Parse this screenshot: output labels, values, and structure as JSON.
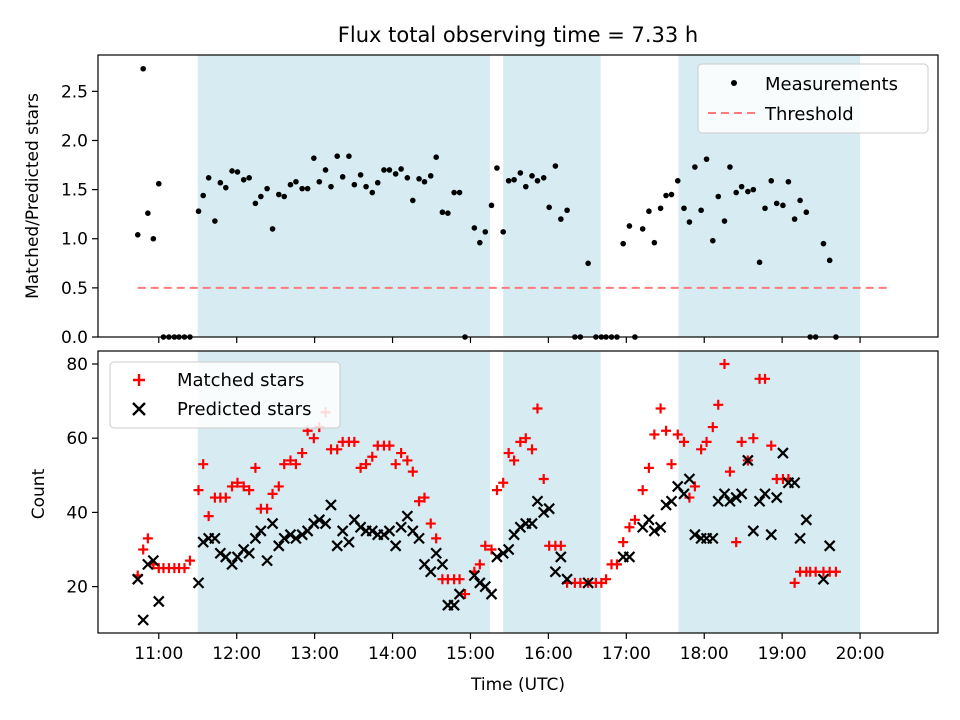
{
  "figure_title": "Flux total observing time = 7.33 h",
  "chart_data": [
    {
      "type": "scatter",
      "title": "Flux total observing time = 7.33 h",
      "xlabel": "",
      "ylabel": "Matched/Predicted stars",
      "xlim": [
        10.22,
        21.0
      ],
      "ylim": [
        0,
        2.87
      ],
      "yticks": [
        0.0,
        0.5,
        1.0,
        1.5,
        2.0,
        2.5
      ],
      "ytick_labels": [
        "0.0",
        "0.5",
        "1.0",
        "1.5",
        "2.0",
        "2.5"
      ],
      "xticks": [
        11,
        12,
        13,
        14,
        15,
        16,
        17,
        18,
        19,
        20
      ],
      "show_xtick_labels": false,
      "grid": false,
      "legend": {
        "placement": "top-right",
        "entries": [
          "Measurements",
          "Threshold"
        ]
      },
      "shaded_intervals": [
        [
          11.5,
          15.25
        ],
        [
          15.42,
          16.67
        ],
        [
          17.67,
          20.0
        ]
      ],
      "threshold": {
        "name": "Threshold",
        "y": 0.5,
        "x_range": [
          10.73,
          20.4
        ],
        "color": "#ff7b7b",
        "style": "dashed"
      },
      "series": [
        {
          "name": "Measurements",
          "marker": "dot",
          "color": "#000000",
          "points": [
            [
              10.73,
              1.04
            ],
            [
              10.8,
              2.73
            ],
            [
              10.86,
              1.26
            ],
            [
              10.93,
              1.0
            ],
            [
              11.0,
              1.56
            ],
            [
              11.06,
              0.0
            ],
            [
              11.13,
              0.0
            ],
            [
              11.2,
              0.0
            ],
            [
              11.26,
              0.0
            ],
            [
              11.33,
              0.0
            ],
            [
              11.4,
              0.0
            ],
            [
              11.51,
              1.28
            ],
            [
              11.57,
              1.44
            ],
            [
              11.64,
              1.62
            ],
            [
              11.72,
              1.18
            ],
            [
              11.79,
              1.57
            ],
            [
              11.86,
              1.52
            ],
            [
              11.94,
              1.69
            ],
            [
              12.01,
              1.68
            ],
            [
              12.09,
              1.6
            ],
            [
              12.16,
              1.62
            ],
            [
              12.24,
              1.36
            ],
            [
              12.31,
              1.43
            ],
            [
              12.39,
              1.51
            ],
            [
              12.46,
              1.1
            ],
            [
              12.54,
              1.45
            ],
            [
              12.61,
              1.43
            ],
            [
              12.69,
              1.55
            ],
            [
              12.76,
              1.58
            ],
            [
              12.84,
              1.51
            ],
            [
              12.91,
              1.51
            ],
            [
              12.99,
              1.82
            ],
            [
              13.06,
              1.58
            ],
            [
              13.14,
              1.7
            ],
            [
              13.21,
              1.53
            ],
            [
              13.29,
              1.84
            ],
            [
              13.36,
              1.63
            ],
            [
              13.44,
              1.84
            ],
            [
              13.51,
              1.55
            ],
            [
              13.59,
              1.65
            ],
            [
              13.66,
              1.53
            ],
            [
              13.74,
              1.47
            ],
            [
              13.81,
              1.57
            ],
            [
              13.89,
              1.7
            ],
            [
              13.96,
              1.7
            ],
            [
              14.04,
              1.66
            ],
            [
              14.11,
              1.71
            ],
            [
              14.19,
              1.62
            ],
            [
              14.26,
              1.39
            ],
            [
              14.34,
              1.61
            ],
            [
              14.41,
              1.58
            ],
            [
              14.49,
              1.64
            ],
            [
              14.56,
              1.83
            ],
            [
              14.64,
              1.27
            ],
            [
              14.71,
              1.26
            ],
            [
              14.79,
              1.47
            ],
            [
              14.86,
              1.47
            ],
            [
              14.93,
              0.0
            ],
            [
              15.05,
              1.11
            ],
            [
              15.12,
              0.96
            ],
            [
              15.19,
              1.07
            ],
            [
              15.27,
              1.34
            ],
            [
              15.34,
              1.72
            ],
            [
              15.42,
              1.07
            ],
            [
              15.49,
              1.59
            ],
            [
              15.56,
              1.6
            ],
            [
              15.64,
              1.67
            ],
            [
              15.71,
              1.53
            ],
            [
              15.79,
              1.64
            ],
            [
              15.86,
              1.59
            ],
            [
              15.94,
              1.62
            ],
            [
              16.01,
              1.32
            ],
            [
              16.09,
              1.74
            ],
            [
              16.16,
              1.2
            ],
            [
              16.24,
              1.29
            ],
            [
              16.34,
              0.0
            ],
            [
              16.41,
              0.0
            ],
            [
              16.51,
              0.75
            ],
            [
              16.61,
              0.0
            ],
            [
              16.68,
              0.0
            ],
            [
              16.74,
              0.0
            ],
            [
              16.81,
              0.0
            ],
            [
              16.88,
              0.0
            ],
            [
              16.96,
              0.95
            ],
            [
              17.04,
              1.13
            ],
            [
              17.11,
              0.0
            ],
            [
              17.21,
              1.1
            ],
            [
              17.29,
              1.28
            ],
            [
              17.36,
              0.96
            ],
            [
              17.44,
              1.31
            ],
            [
              17.51,
              1.44
            ],
            [
              17.58,
              1.45
            ],
            [
              17.66,
              1.59
            ],
            [
              17.74,
              1.31
            ],
            [
              17.81,
              1.17
            ],
            [
              17.88,
              1.73
            ],
            [
              17.96,
              1.29
            ],
            [
              18.03,
              1.81
            ],
            [
              18.11,
              0.98
            ],
            [
              18.18,
              1.43
            ],
            [
              18.26,
              1.18
            ],
            [
              18.33,
              1.73
            ],
            [
              18.41,
              1.47
            ],
            [
              18.48,
              1.53
            ],
            [
              18.56,
              1.48
            ],
            [
              18.63,
              1.5
            ],
            [
              18.71,
              0.76
            ],
            [
              18.78,
              1.31
            ],
            [
              18.86,
              1.59
            ],
            [
              18.93,
              1.36
            ],
            [
              19.01,
              1.34
            ],
            [
              19.08,
              1.58
            ],
            [
              19.16,
              1.2
            ],
            [
              19.23,
              1.39
            ],
            [
              19.31,
              1.27
            ],
            [
              19.36,
              0.0
            ],
            [
              19.43,
              0.0
            ],
            [
              19.53,
              0.95
            ],
            [
              19.61,
              0.78
            ],
            [
              19.69,
              0.0
            ]
          ]
        }
      ]
    },
    {
      "type": "scatter",
      "title": "",
      "xlabel": "Time (UTC)",
      "ylabel": "Count",
      "xlim": [
        10.22,
        21.0
      ],
      "ylim": [
        7.5,
        83.5
      ],
      "yticks": [
        20,
        40,
        60,
        80
      ],
      "ytick_labels": [
        "20",
        "40",
        "60",
        "80"
      ],
      "xticks": [
        11,
        12,
        13,
        14,
        15,
        16,
        17,
        18,
        19,
        20
      ],
      "xtick_labels": [
        "11:00",
        "12:00",
        "13:00",
        "14:00",
        "15:00",
        "16:00",
        "17:00",
        "18:00",
        "19:00",
        "20:00"
      ],
      "grid": false,
      "legend": {
        "placement": "top-left",
        "entries": [
          "Matched stars",
          "Predicted stars"
        ]
      },
      "shaded_intervals": [
        [
          11.5,
          15.25
        ],
        [
          15.42,
          16.67
        ],
        [
          17.67,
          20.0
        ]
      ],
      "series": [
        {
          "name": "Matched stars",
          "marker": "plus",
          "color": "#ff0000",
          "x": [
            10.73,
            10.8,
            10.86,
            10.93,
            11.0,
            11.06,
            11.13,
            11.2,
            11.26,
            11.33,
            11.4,
            11.51,
            11.57,
            11.64,
            11.72,
            11.79,
            11.86,
            11.94,
            12.01,
            12.09,
            12.16,
            12.24,
            12.31,
            12.39,
            12.46,
            12.54,
            12.61,
            12.69,
            12.76,
            12.84,
            12.91,
            12.99,
            13.06,
            13.14,
            13.21,
            13.29,
            13.36,
            13.44,
            13.51,
            13.59,
            13.66,
            13.74,
            13.81,
            13.89,
            13.96,
            14.04,
            14.11,
            14.19,
            14.26,
            14.34,
            14.41,
            14.49,
            14.56,
            14.64,
            14.71,
            14.79,
            14.86,
            14.93,
            15.05,
            15.12,
            15.19,
            15.27,
            15.34,
            15.42,
            15.49,
            15.56,
            15.64,
            15.71,
            15.79,
            15.86,
            15.94,
            16.01,
            16.09,
            16.16,
            16.24,
            16.34,
            16.41,
            16.51,
            16.61,
            16.68,
            16.74,
            16.81,
            16.88,
            16.96,
            17.04,
            17.11,
            17.21,
            17.29,
            17.36,
            17.44,
            17.51,
            17.58,
            17.66,
            17.74,
            17.81,
            17.88,
            17.96,
            18.03,
            18.11,
            18.18,
            18.26,
            18.33,
            18.41,
            18.48,
            18.56,
            18.63,
            18.71,
            18.78,
            18.86,
            18.93,
            19.01,
            19.08,
            19.16,
            19.23,
            19.31,
            19.36,
            19.43,
            19.53,
            19.61,
            19.69
          ],
          "values": [
            23,
            30,
            33,
            26,
            25,
            25,
            25,
            25,
            25,
            25,
            27,
            46,
            53,
            39,
            44,
            44,
            44,
            47,
            48,
            47,
            46,
            52,
            41,
            41,
            45,
            47,
            53,
            54,
            53,
            56,
            62,
            60,
            63,
            67,
            57,
            57,
            59,
            59,
            59,
            52,
            53,
            55,
            58,
            58,
            58,
            53,
            56,
            54,
            51,
            43,
            44,
            37,
            33,
            22,
            22,
            22,
            22,
            18,
            24,
            26,
            31,
            30,
            46,
            48,
            56,
            54,
            59,
            60,
            57,
            68,
            49,
            31,
            31,
            31,
            21,
            21,
            21,
            21,
            21,
            21,
            22,
            26,
            26,
            32,
            36,
            38,
            46,
            52,
            61,
            68,
            62,
            53,
            61,
            59,
            44,
            47,
            57,
            59,
            63,
            69,
            80,
            51,
            32,
            59,
            54,
            60,
            76,
            76,
            58,
            49,
            49,
            49,
            21,
            24,
            24,
            24,
            24,
            24,
            24,
            24
          ]
        },
        {
          "name": "Predicted stars",
          "marker": "x",
          "color": "#000000",
          "x": [
            10.73,
            10.8,
            10.86,
            10.93,
            11.0,
            11.51,
            11.57,
            11.64,
            11.72,
            11.79,
            11.86,
            11.94,
            12.01,
            12.09,
            12.16,
            12.24,
            12.31,
            12.39,
            12.46,
            12.54,
            12.61,
            12.69,
            12.76,
            12.84,
            12.91,
            12.99,
            13.06,
            13.14,
            13.21,
            13.29,
            13.36,
            13.44,
            13.51,
            13.59,
            13.66,
            13.74,
            13.81,
            13.89,
            13.96,
            14.04,
            14.11,
            14.19,
            14.26,
            14.34,
            14.41,
            14.49,
            14.56,
            14.64,
            14.71,
            14.79,
            14.86,
            15.05,
            15.12,
            15.19,
            15.27,
            15.34,
            15.42,
            15.49,
            15.56,
            15.64,
            15.71,
            15.79,
            15.86,
            15.94,
            16.01,
            16.09,
            16.16,
            16.24,
            16.51,
            16.96,
            17.04,
            17.21,
            17.29,
            17.36,
            17.44,
            17.51,
            17.58,
            17.66,
            17.74,
            17.81,
            17.88,
            17.96,
            18.03,
            18.11,
            18.18,
            18.26,
            18.33,
            18.41,
            18.48,
            18.56,
            18.63,
            18.71,
            18.78,
            18.86,
            18.93,
            19.01,
            19.08,
            19.16,
            19.23,
            19.31,
            19.53,
            19.61
          ],
          "values": [
            22,
            11,
            26,
            27,
            16,
            21,
            32,
            33,
            33,
            29,
            28,
            26,
            28,
            30,
            29,
            33,
            35,
            27,
            37,
            31,
            33,
            34,
            33,
            34,
            35,
            37,
            38,
            37,
            42,
            31,
            35,
            32,
            38,
            36,
            35,
            35,
            34,
            34,
            35,
            31,
            36,
            39,
            35,
            33,
            26,
            24,
            29,
            26,
            15,
            15,
            18,
            23,
            21,
            20,
            18,
            28,
            29,
            30,
            34,
            36,
            37,
            37,
            43,
            40,
            41,
            24,
            28,
            22,
            21,
            28,
            28,
            36,
            38,
            35,
            36,
            42,
            43,
            47,
            45,
            49,
            34,
            33,
            33,
            33,
            43,
            45,
            43,
            44,
            45,
            54,
            35,
            43,
            45,
            34,
            44,
            56,
            48,
            48,
            33,
            38,
            22,
            31
          ]
        }
      ]
    }
  ]
}
